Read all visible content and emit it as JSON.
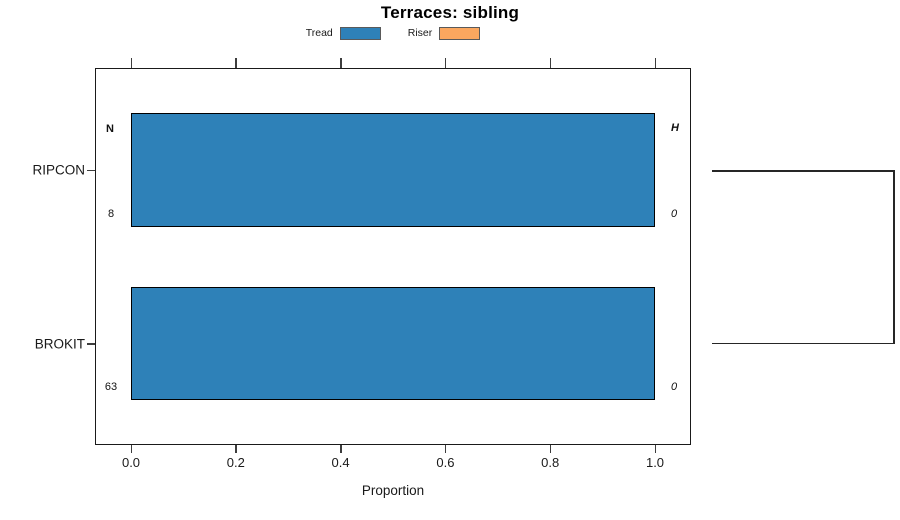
{
  "title": "Terraces: sibling",
  "legend": {
    "items": [
      {
        "label": "Tread",
        "color": "#2e81b8"
      },
      {
        "label": "Riser",
        "color": "#fba75f"
      }
    ]
  },
  "axis": {
    "xlabel": "Proportion",
    "tick_labels": [
      "0.0",
      "0.2",
      "0.4",
      "0.6",
      "0.8",
      "1.0"
    ],
    "tick_values": [
      0,
      0.2,
      0.4,
      0.6,
      0.8,
      1.0
    ]
  },
  "column_headers": {
    "left": "N",
    "right": "H"
  },
  "rows": [
    {
      "category": "RIPCON",
      "n": "8",
      "h": "0",
      "tread": 1.0,
      "riser": 0.0
    },
    {
      "category": "BROKIT",
      "n": "63",
      "h": "0",
      "tread": 1.0,
      "riser": 0.0
    }
  ],
  "chart_data": {
    "type": "bar",
    "orientation": "horizontal",
    "title": "Terraces: sibling",
    "xlabel": "Proportion",
    "ylabel": "",
    "xlim": [
      0,
      1
    ],
    "x_ticks": [
      0.0,
      0.2,
      0.4,
      0.6,
      0.8,
      1.0
    ],
    "categories": [
      "RIPCON",
      "BROKIT"
    ],
    "series": [
      {
        "name": "Tread",
        "color": "#2e81b8",
        "values": [
          1.0,
          1.0
        ]
      },
      {
        "name": "Riser",
        "color": "#fba75f",
        "values": [
          0.0,
          0.0
        ]
      }
    ],
    "annotations": {
      "column_headers": [
        "N",
        "H"
      ],
      "N": [
        8,
        63
      ],
      "H": [
        0,
        0
      ]
    },
    "legend_position": "top-center",
    "grid": false,
    "axis_sides": "ticks on top and bottom, category ticks on left",
    "right_panel": "tree bracket linking RIPCON and BROKIT rows"
  }
}
